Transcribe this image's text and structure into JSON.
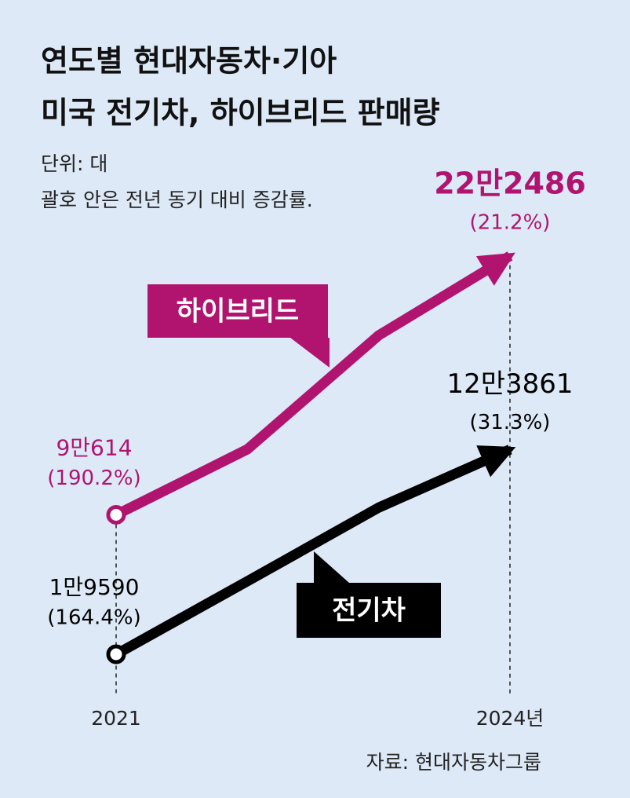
{
  "chart_data": {
    "type": "line",
    "title": [
      "연도별 현대자동차·기아",
      "미국 전기차, 하이브리드 판매량"
    ],
    "notes": [
      "단위: 대",
      "괄호 안은 전년 동기 대비 증감률."
    ],
    "source": "자료: 현대자동차그룹",
    "categories": [
      "2021",
      null,
      null,
      "2024년"
    ],
    "ylim": [
      0,
      240000
    ],
    "series": [
      {
        "name": "하이브리드",
        "color": "#b0146e",
        "values": [
          90614,
          124000,
          182000,
          222486
        ],
        "value_labels": [
          "9만614",
          null,
          null,
          "22만2486"
        ],
        "change_labels": [
          "(190.2%)",
          null,
          null,
          "(21.2%)"
        ]
      },
      {
        "name": "전기차",
        "color": "#000000",
        "values": [
          19590,
          56800,
          94300,
          123861
        ],
        "value_labels": [
          "1만9590",
          null,
          null,
          "12만3861"
        ],
        "change_labels": [
          "(164.4%)",
          null,
          null,
          "(31.3%)"
        ]
      }
    ]
  }
}
